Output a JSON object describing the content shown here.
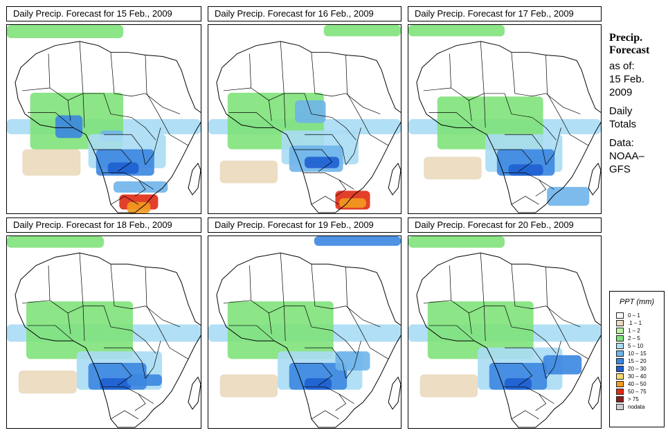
{
  "panels": [
    {
      "title": "Daily Precip. Forecast for  15 Feb., 2009"
    },
    {
      "title": "Daily Precip. Forecast for  16 Feb., 2009"
    },
    {
      "title": "Daily Precip. Forecast for  17 Feb., 2009"
    },
    {
      "title": "Daily Precip. Forecast for  18 Feb., 2009"
    },
    {
      "title": "Daily Precip. Forecast for  19 Feb., 2009"
    },
    {
      "title": "Daily Precip. Forecast for  20 Feb., 2009"
    }
  ],
  "side": {
    "heading_1": "Precip.",
    "heading_2": "Forecast",
    "line_1": "as of:",
    "line_2": "15 Feb.",
    "line_3": "2009",
    "line_4": "Daily",
    "line_5": "Totals",
    "line_6": "Data:",
    "line_7": "NOAA–",
    "line_8": "GFS"
  },
  "legend": {
    "title": "PPT (mm)",
    "items": [
      {
        "label": "0 – 1",
        "color": "#ffffff"
      },
      {
        "label": ".1 – 1",
        "color": "#ead9bd"
      },
      {
        "label": "1 – 2",
        "color": "#b8f2a2"
      },
      {
        "label": "2 – 5",
        "color": "#7fe27a"
      },
      {
        "label": "5 – 10",
        "color": "#a9dcf4"
      },
      {
        "label": "10 – 15",
        "color": "#6fb4ea"
      },
      {
        "label": "15 – 20",
        "color": "#3b86e0"
      },
      {
        "label": "20 – 30",
        "color": "#1e5fd0"
      },
      {
        "label": "30 – 40",
        "color": "#f4dc73"
      },
      {
        "label": "40 – 50",
        "color": "#f29a1f"
      },
      {
        "label": "50 – 75",
        "color": "#e02a14"
      },
      {
        "label": "> 75",
        "color": "#8a1d1d"
      },
      {
        "label": "nodata",
        "color": "#cfcfcf"
      }
    ]
  }
}
